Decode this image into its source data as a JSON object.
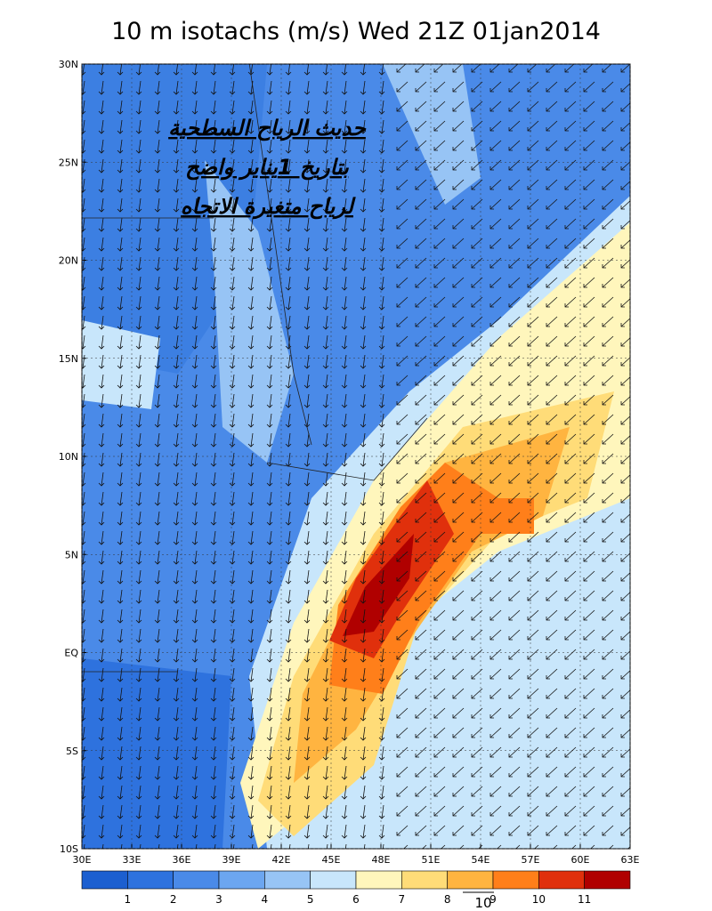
{
  "title": "10 m isotachs (m/s) Wed 21Z 01jan2014",
  "map": {
    "lon_labels": [
      "30E",
      "33E",
      "36E",
      "39E",
      "42E",
      "45E",
      "48E",
      "51E",
      "54E",
      "57E",
      "60E",
      "63E"
    ],
    "lat_labels": [
      "30N",
      "25N",
      "20N",
      "15N",
      "10N",
      "5N",
      "EQ",
      "5S",
      "10S"
    ]
  },
  "annotation": {
    "lines": [
      "حديث الرياح السطحية",
      "بتاريخ 1يناير واضح",
      "لرياح متغيرة الاتجاه"
    ]
  },
  "colorbar": {
    "colors": [
      "#1c5fd0",
      "#2e72de",
      "#4a8ae8",
      "#6ca6f0",
      "#97c4f5",
      "#c8e6fb",
      "#fff6bc",
      "#ffdc78",
      "#ffb440",
      "#ff7f1a",
      "#e0300c",
      "#b00000"
    ],
    "labels": [
      "1",
      "2",
      "3",
      "4",
      "5",
      "6",
      "7",
      "8",
      "9",
      "10",
      "11"
    ]
  },
  "vector_reference": {
    "label": "10"
  }
}
